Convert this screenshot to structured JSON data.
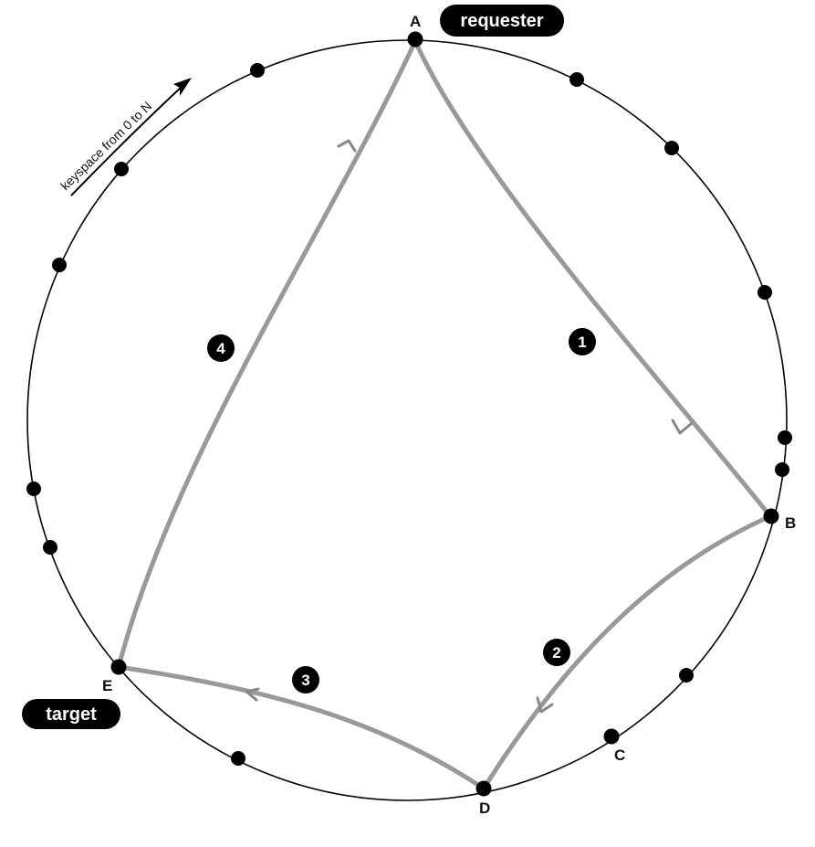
{
  "diagram": {
    "keyspace_label": "keyspace from 0 to N",
    "nodes": {
      "A": "A",
      "B": "B",
      "C": "C",
      "D": "D",
      "E": "E"
    },
    "badges": {
      "requester": "requester",
      "target": "target"
    },
    "steps": [
      "1",
      "2",
      "3",
      "4"
    ]
  },
  "colors": {
    "ring": "#000000",
    "node": "#000000",
    "route": "#999999",
    "route_arrow": "#8a8588",
    "badge_bg": "#000000",
    "badge_text": "#ffffff"
  }
}
